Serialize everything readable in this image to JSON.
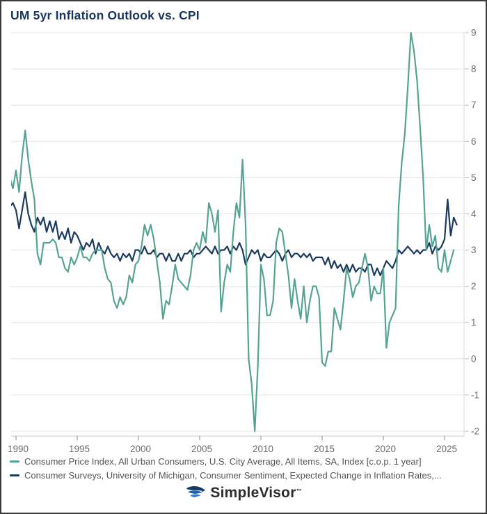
{
  "header": {
    "title": "UM 5yr Inflation Outlook vs. CPI"
  },
  "footer": {
    "brand": "SimpleVisor",
    "trademark": "™",
    "logo_icon": "falcon-icon"
  },
  "colors": {
    "title": "#17365d",
    "cpi_line": "#55a493",
    "um_line": "#1b3a5e",
    "gridline": "#e4e4e4",
    "axis_line": "#c9c9c9",
    "tick_label": "#6b6b6b",
    "legend_text": "#555555"
  },
  "chart_data": {
    "type": "line",
    "title": "UM 5yr Inflation Outlook vs. CPI",
    "xlabel": "",
    "ylabel": "",
    "grid": true,
    "legend_position": "bottom",
    "y_axis": {
      "side": "right",
      "ticks": [
        9,
        8,
        7,
        6,
        5,
        4,
        3,
        2,
        1,
        0,
        -1,
        -2
      ],
      "range": [
        -2.15,
        9.1
      ]
    },
    "x_axis": {
      "ticks": [
        1990,
        1995,
        2000,
        2005,
        2010,
        2015,
        2020,
        2025
      ],
      "range": [
        1989.5,
        2026.7
      ]
    },
    "series": [
      {
        "name": "Consumer Price Index, All Urban Consumers, U.S. City Average, All Items, SA, Index [c.o.p. 1 year]",
        "color": "#55a493",
        "start_year": 1989.5,
        "interval_years": 0.25,
        "values": [
          5.0,
          4.7,
          5.2,
          4.6,
          5.6,
          6.3,
          5.5,
          4.9,
          4.4,
          2.9,
          2.6,
          3.2,
          3.2,
          3.2,
          3.3,
          3.2,
          2.8,
          2.8,
          2.5,
          2.4,
          2.8,
          2.6,
          2.8,
          3.1,
          2.8,
          2.8,
          2.7,
          2.9,
          3.0,
          3.0,
          3.0,
          2.5,
          2.2,
          2.1,
          1.6,
          1.4,
          1.7,
          1.5,
          1.7,
          2.3,
          2.1,
          2.6,
          2.7,
          3.1,
          3.7,
          3.4,
          3.7,
          3.3,
          2.7,
          2.1,
          1.1,
          1.6,
          1.5,
          2.0,
          2.6,
          2.2,
          2.1,
          2.0,
          1.9,
          2.3,
          3.0,
          3.2,
          3.0,
          3.5,
          3.2,
          4.3,
          4.0,
          3.5,
          4.1,
          1.3,
          2.1,
          2.6,
          2.4,
          3.5,
          4.3,
          3.9,
          5.5,
          3.7,
          0.0,
          -0.7,
          -2.0,
          -0.2,
          2.6,
          2.2,
          1.2,
          1.2,
          1.6,
          3.2,
          3.6,
          3.5,
          2.9,
          2.3,
          1.4,
          2.2,
          1.6,
          1.1,
          2.0,
          1.0,
          1.6,
          2.0,
          2.0,
          1.7,
          -0.1,
          -0.2,
          0.2,
          0.2,
          1.4,
          1.1,
          0.8,
          1.6,
          2.5,
          2.2,
          1.7,
          2.0,
          2.1,
          2.5,
          2.9,
          2.5,
          1.6,
          2.0,
          1.8,
          1.8,
          2.5,
          0.3,
          1.0,
          1.2,
          1.4,
          4.2,
          5.4,
          6.2,
          7.5,
          9.0,
          8.5,
          7.7,
          6.4,
          5.0,
          3.0,
          3.7,
          3.1,
          3.4,
          2.5,
          2.4,
          3.0,
          2.4,
          2.7,
          3.0
        ]
      },
      {
        "name": "Consumer Surveys, University of Michigan, Consumer Sentiment, Expected Change in Inflation Rates,...",
        "color": "#1b3a5e",
        "start_year": 1989.5,
        "interval_years": 0.25,
        "values": [
          4.2,
          4.3,
          4.1,
          3.6,
          4.1,
          4.6,
          4.0,
          3.7,
          3.5,
          3.9,
          3.7,
          3.9,
          3.5,
          3.8,
          3.5,
          3.8,
          3.3,
          3.5,
          3.3,
          3.6,
          3.2,
          3.5,
          3.4,
          3.2,
          3.0,
          3.2,
          3.1,
          3.3,
          2.9,
          3.2,
          3.0,
          2.9,
          3.1,
          2.9,
          2.8,
          2.9,
          2.7,
          2.9,
          2.8,
          2.9,
          2.7,
          3.0,
          3.0,
          2.9,
          3.1,
          2.9,
          2.9,
          3.0,
          2.8,
          2.9,
          2.9,
          2.7,
          2.9,
          2.7,
          2.7,
          2.9,
          2.7,
          2.9,
          2.9,
          3.0,
          2.8,
          2.9,
          2.9,
          3.0,
          3.1,
          3.0,
          2.9,
          3.1,
          2.9,
          3.0,
          3.0,
          3.1,
          2.9,
          3.1,
          3.0,
          3.2,
          3.0,
          2.6,
          2.8,
          3.0,
          2.9,
          3.0,
          2.7,
          2.9,
          2.8,
          2.8,
          2.9,
          3.0,
          2.9,
          2.7,
          2.9,
          3.0,
          2.8,
          2.9,
          2.9,
          2.8,
          2.9,
          2.8,
          2.9,
          2.7,
          2.8,
          2.8,
          2.8,
          2.6,
          2.8,
          2.5,
          2.7,
          2.5,
          2.6,
          2.4,
          2.6,
          2.4,
          2.6,
          2.4,
          2.5,
          2.5,
          2.4,
          2.6,
          2.6,
          2.3,
          2.5,
          2.3,
          2.5,
          2.7,
          2.6,
          2.5,
          2.7,
          3.0,
          2.9,
          3.0,
          3.1,
          3.0,
          2.9,
          3.0,
          2.9,
          3.0,
          3.0,
          3.2,
          2.9,
          3.1,
          3.0,
          3.1,
          3.3,
          4.4,
          3.4,
          3.9,
          3.7
        ]
      }
    ]
  }
}
